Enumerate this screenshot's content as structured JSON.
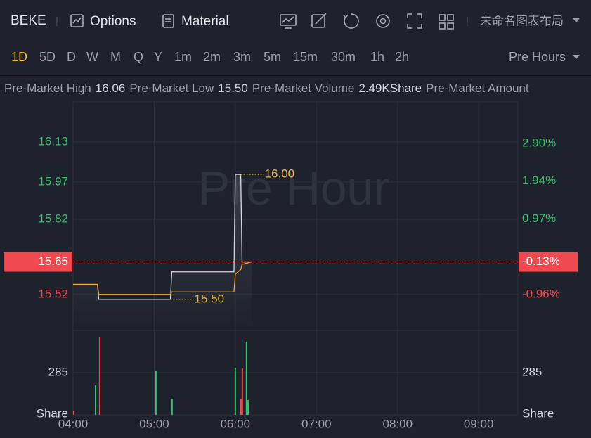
{
  "toolbar": {
    "symbol": "BEKE",
    "options": "Options",
    "material": "Material",
    "layout": "未命名图表布局"
  },
  "timeframes": {
    "items": [
      "1D",
      "5D",
      "D",
      "W",
      "M",
      "Q",
      "Y",
      "1m",
      "2m",
      "3m",
      "5m",
      "15m",
      "30m",
      "1h",
      "2h"
    ],
    "active": 0,
    "session": "Pre Hours"
  },
  "stats": [
    {
      "label": "Pre-Market High",
      "value": "16.06"
    },
    {
      "label": "Pre-Market Low",
      "value": "15.50"
    },
    {
      "label": "Pre-Market Volume",
      "value": "2.49KShare"
    },
    {
      "label": "Pre-Market Amount"
    }
  ],
  "chart_data": {
    "type": "line",
    "watermark": "Pre Hour",
    "grid": true,
    "xlim": [
      240,
      569
    ],
    "xticks": [
      {
        "value": 240,
        "label": "04:00"
      },
      {
        "value": 300,
        "label": "05:00"
      },
      {
        "value": 360,
        "label": "06:00"
      },
      {
        "value": 420,
        "label": "07:00"
      },
      {
        "value": 480,
        "label": "08:00"
      },
      {
        "value": 540,
        "label": "09:00"
      }
    ],
    "ylim": [
      15.39,
      16.29
    ],
    "yticks": [
      16.13,
      15.97,
      15.82,
      15.52
    ],
    "y2lim": [
      -1.79,
      3.96
    ],
    "y2ticks": [
      {
        "value": 2.9,
        "label": "2.90%"
      },
      {
        "value": 1.94,
        "label": "1.94%"
      },
      {
        "value": 0.97,
        "label": "0.97%"
      },
      {
        "value": -0.96,
        "label": "-0.96%"
      }
    ],
    "up_color": "#2fc36a",
    "down_color": "#f0494f",
    "last_price": {
      "value": 15.65,
      "change": {
        "value": -0.13,
        "label": "-0.13%"
      }
    },
    "series": [
      {
        "color": "#d8d9de",
        "x": [
          240,
          258,
          259,
          312,
          313,
          359,
          360,
          364,
          365,
          372
        ],
        "values": [
          15.56,
          15.56,
          15.5,
          15.5,
          15.61,
          15.61,
          16.0,
          16.0,
          15.65,
          15.65
        ]
      },
      {
        "color": "#f5a623",
        "x": [
          240,
          258,
          259,
          312,
          313,
          359,
          360,
          364,
          365,
          372
        ],
        "values": [
          15.56,
          15.56,
          15.52,
          15.52,
          15.53,
          15.53,
          15.6,
          15.62,
          15.64,
          15.65
        ]
      }
    ],
    "annotations": [
      {
        "x": 364,
        "value": 16.0,
        "label": "16.00"
      },
      {
        "x": 312,
        "value": 15.5,
        "label": "15.50"
      }
    ],
    "volume": {
      "type": "bar",
      "x": [
        240.5,
        256.6,
        259.7,
        301.3,
        313.2,
        360,
        364.2,
        365.2,
        368.3,
        369.4
      ],
      "values": [
        25,
        200,
        522,
        295,
        109,
        318,
        105,
        313,
        494,
        100
      ],
      "colors": [
        "#f0494f",
        "#2fc36a",
        "#f0494f",
        "#2fc36a",
        "#2fc36a",
        "#2fc36a",
        "#f0494f",
        "#f0494f",
        "#2fc36a",
        "#2fc36a"
      ],
      "ylim": [
        0,
        546
      ],
      "yticks": [
        285
      ],
      "unit": "Share"
    }
  }
}
